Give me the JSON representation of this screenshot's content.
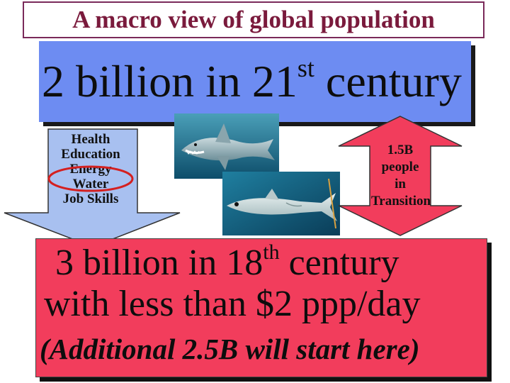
{
  "title": "A macro view of global population",
  "top_banner": {
    "text_before": "2 billion in 21",
    "superscript": "st",
    "text_after": " century",
    "color": "#6d8cf2"
  },
  "arrow_list": {
    "items": [
      "Health",
      "Education",
      "Energy",
      "Water",
      "Job Skills"
    ],
    "highlighted_item": "Energy",
    "arrow_color": "#a8c0f0",
    "highlight_color": "#d42020"
  },
  "transition_label": {
    "lines": [
      "1.5B",
      "people",
      "in",
      "Transition"
    ],
    "arrow_color": "#f23d5c"
  },
  "photos": [
    {
      "icon": "shark-photo-icon"
    },
    {
      "icon": "fish-photo-icon"
    }
  ],
  "bottom_box": {
    "line1_before": "3 billion in 18",
    "line1_superscript": "th",
    "line1_after": " century",
    "line2": "with less than $2 ppp/day",
    "line3": "(Additional 2.5B will start here)",
    "color": "#f23d5c"
  }
}
